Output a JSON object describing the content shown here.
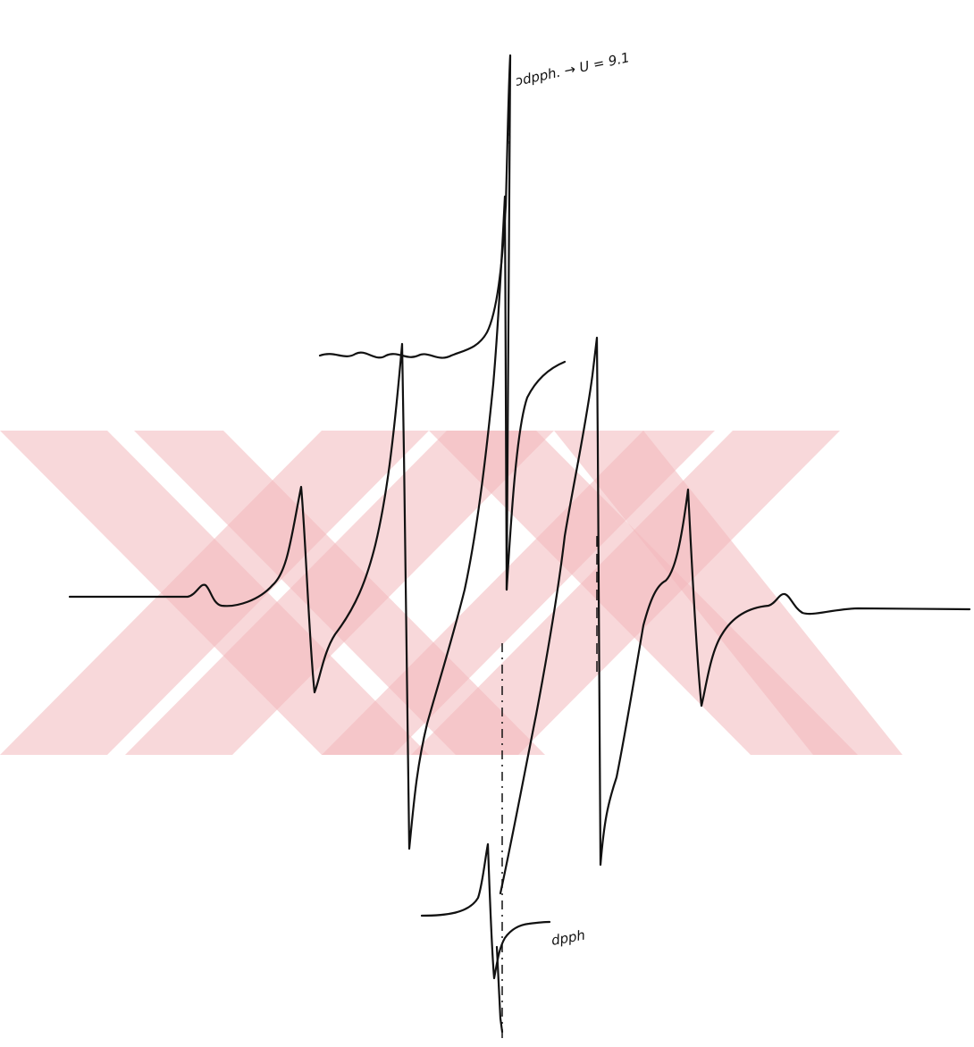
{
  "annotations": {
    "top_note": "ɔdpph. → U = 9.1",
    "bottom_note": "dpph"
  }
}
